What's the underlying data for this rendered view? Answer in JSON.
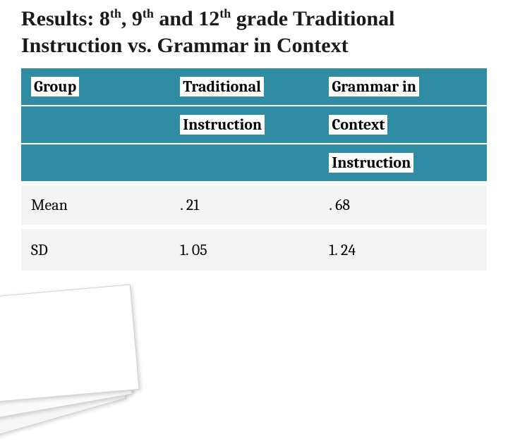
{
  "title": {
    "prefix": "Results:  8",
    "sup1": "th",
    "mid1": ", 9",
    "sup2": "th",
    "mid2": " and 12",
    "sup3": "th",
    "suffix": " grade Traditional Instruction vs. Grammar in Context"
  },
  "table": {
    "type": "table",
    "header_bg": "#2f8ca3",
    "label_bg": "#ffffff",
    "data_bg": "#f4f4f4",
    "columns": [
      "Group",
      "Traditional Instruction",
      "Grammar in Context Instruction"
    ],
    "header_rows": [
      [
        "Group",
        "Traditional",
        "Grammar in"
      ],
      [
        "",
        "Instruction",
        "Context"
      ],
      [
        "",
        "",
        "Instruction"
      ]
    ],
    "rows": [
      {
        "label": "Mean",
        "col1": ". 21",
        "col2": ". 68"
      },
      {
        "label": "SD",
        "col1": "1. 05",
        "col2": "1. 24"
      }
    ],
    "header_fontsize": 22,
    "data_fontsize": 22
  },
  "colors": {
    "teal": "#2f8ca3",
    "white": "#ffffff",
    "light_gray": "#f4f4f4",
    "text": "#000000"
  }
}
